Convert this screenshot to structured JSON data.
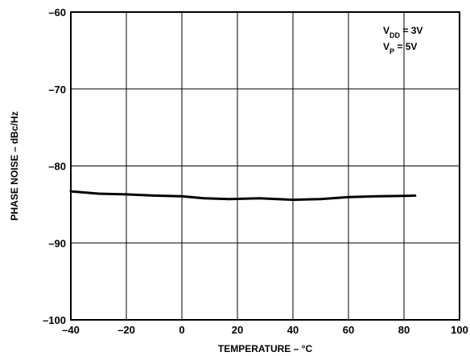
{
  "chart_data": {
    "type": "line",
    "title": "",
    "xlabel": "TEMPERATURE – °C",
    "ylabel": "PHASE NOISE – dBc/Hz",
    "xlim": [
      -40,
      100
    ],
    "ylim": [
      -100,
      -60
    ],
    "x_ticks": [
      -40,
      -20,
      0,
      20,
      40,
      60,
      80,
      100
    ],
    "y_ticks": [
      -60,
      -70,
      -80,
      -90,
      -100
    ],
    "x_tick_labels": [
      "–40",
      "–20",
      "0",
      "20",
      "40",
      "60",
      "80",
      "100"
    ],
    "y_tick_labels": [
      "–60",
      "–70",
      "–80",
      "–90",
      "–100"
    ],
    "grid": true,
    "annotations": [
      {
        "main": "V",
        "sub": "DD",
        "rest": " = 3V"
      },
      {
        "main": "V",
        "sub": "P",
        "rest": " = 5V"
      }
    ],
    "series": [
      {
        "x": [
          -40,
          -30,
          -20,
          -10,
          0,
          8,
          17,
          28,
          40,
          50,
          60,
          70,
          80,
          84
        ],
        "y": [
          -83.3,
          -83.6,
          -83.7,
          -83.85,
          -83.95,
          -84.2,
          -84.3,
          -84.2,
          -84.4,
          -84.3,
          -84.05,
          -83.95,
          -83.9,
          -83.85
        ]
      }
    ]
  }
}
